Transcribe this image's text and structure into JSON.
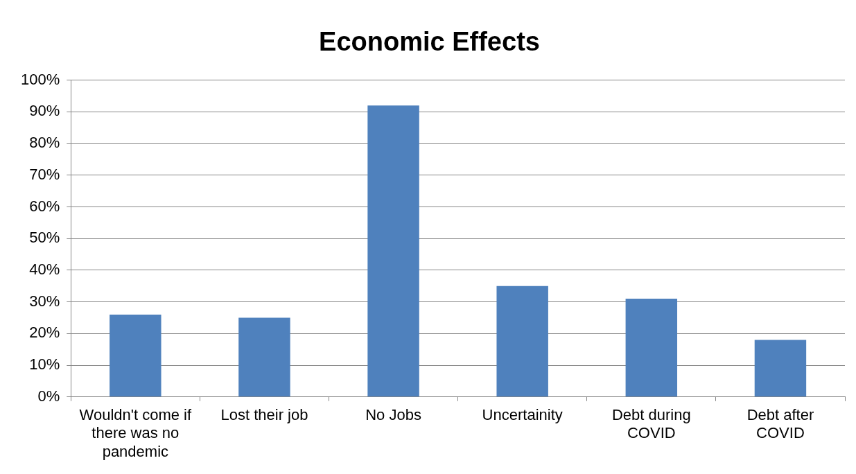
{
  "chart_data": {
    "type": "bar",
    "title": "Economic Effects",
    "categories": [
      "Wouldn't come if there was no pandemic",
      "Lost their job",
      "No Jobs",
      "Uncertainity",
      "Debt during COVID",
      "Debt after COVID"
    ],
    "values": [
      26,
      25,
      92,
      35,
      31,
      18
    ],
    "color": "#4f81bd",
    "ylim": [
      0,
      100
    ],
    "yticks": [
      {
        "value": 0,
        "label": "0%"
      },
      {
        "value": 10,
        "label": "10%"
      },
      {
        "value": 20,
        "label": "20%"
      },
      {
        "value": 30,
        "label": "30%"
      },
      {
        "value": 40,
        "label": "40%"
      },
      {
        "value": 50,
        "label": "50%"
      },
      {
        "value": 60,
        "label": "60%"
      },
      {
        "value": 70,
        "label": "70%"
      },
      {
        "value": 80,
        "label": "80%"
      },
      {
        "value": 90,
        "label": "90%"
      },
      {
        "value": 100,
        "label": "100%"
      }
    ],
    "grid": "y"
  }
}
